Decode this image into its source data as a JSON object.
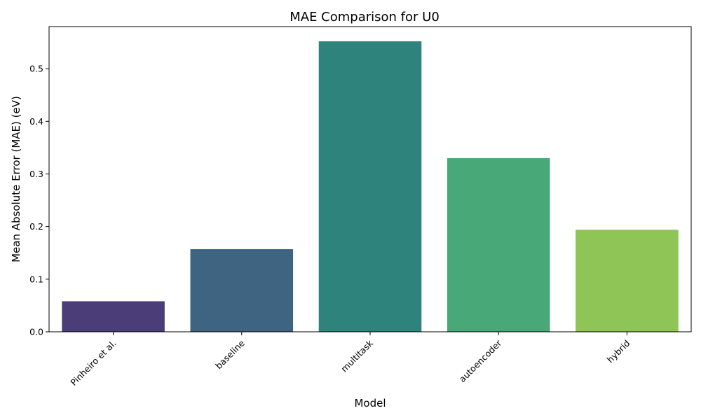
{
  "chart_data": {
    "type": "bar",
    "title": "MAE Comparison for U0",
    "xlabel": "Model",
    "ylabel": "Mean Absolute Error (MAE) (eV)",
    "categories": [
      "Pinheiro et al.",
      "baseline",
      "multitask",
      "autoencoder",
      "hybrid"
    ],
    "values": [
      0.058,
      0.157,
      0.552,
      0.33,
      0.194
    ],
    "colors": [
      "#4a3d78",
      "#3e6482",
      "#2e837d",
      "#48a878",
      "#8fc456"
    ],
    "ylim": [
      0,
      0.58
    ],
    "yticks": [
      0.0,
      0.1,
      0.2,
      0.3,
      0.4,
      0.5
    ],
    "ytick_labels": [
      "0.0",
      "0.1",
      "0.2",
      "0.3",
      "0.4",
      "0.5"
    ],
    "grid": false,
    "legend": "none"
  }
}
